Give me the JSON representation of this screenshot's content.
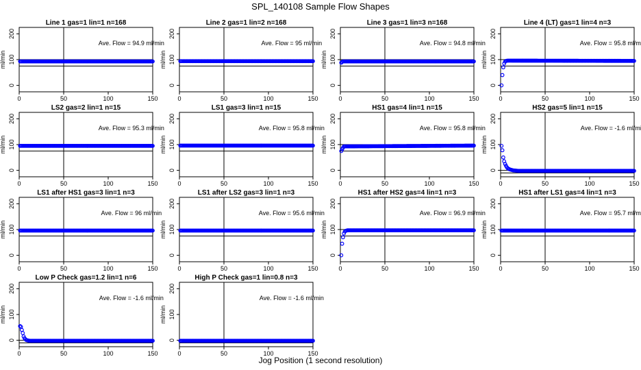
{
  "figure": {
    "title": "SPL_140108  Sample Flow Shapes",
    "xlabel": "Jog Position (1 second resolution)"
  },
  "colors": {
    "points": "#0000ff",
    "axis": "#000000",
    "background": "#ffffff"
  },
  "chart_data": [
    {
      "type": "scatter",
      "title": "Line 1 gas=1 lin=1 n=168",
      "annotation": "Ave. Flow = 94.9  ml/min",
      "ylabel": "ml/min",
      "xlim": [
        0,
        150
      ],
      "ylim": [
        -25,
        225
      ],
      "xticks": [
        0,
        50,
        100,
        150
      ],
      "yticks": [
        0,
        100,
        200
      ],
      "ref_lines": {
        "v": 50,
        "h": [
          75,
          100
        ]
      },
      "x": [
        1,
        150
      ],
      "y": [
        93,
        93
      ]
    },
    {
      "type": "scatter",
      "title": "Line 2 gas=1 lin=2 n=168",
      "annotation": "Ave. Flow = 95  ml/min",
      "ylabel": "ml/min",
      "xlim": [
        0,
        150
      ],
      "ylim": [
        -25,
        225
      ],
      "xticks": [
        0,
        50,
        100,
        150
      ],
      "yticks": [
        0,
        100,
        200
      ],
      "ref_lines": {
        "v": 50,
        "h": [
          75,
          100
        ]
      },
      "x": [
        1,
        150
      ],
      "y": [
        94,
        94
      ]
    },
    {
      "type": "scatter",
      "title": "Line 3 gas=1 lin=3 n=168",
      "annotation": "Ave. Flow = 94.8  ml/min",
      "ylabel": "ml/min",
      "xlim": [
        0,
        150
      ],
      "ylim": [
        -25,
        225
      ],
      "xticks": [
        0,
        50,
        100,
        150
      ],
      "yticks": [
        0,
        100,
        200
      ],
      "ref_lines": {
        "v": 50,
        "h": [
          75,
          100
        ]
      },
      "x": [
        1,
        2,
        3,
        150
      ],
      "y": [
        88,
        91,
        93,
        93
      ]
    },
    {
      "type": "scatter",
      "title": "Line 4 (LT) gas=1 lin=4 n=3",
      "annotation": "Ave. Flow = 95.8  ml/min",
      "ylabel": "ml/min",
      "xlim": [
        0,
        150
      ],
      "ylim": [
        -25,
        225
      ],
      "xticks": [
        0,
        50,
        100,
        150
      ],
      "yticks": [
        0,
        100,
        200
      ],
      "ref_lines": {
        "v": 50,
        "h": [
          75,
          100
        ]
      },
      "x": [
        1,
        2,
        3,
        4,
        5,
        6,
        8,
        10,
        150
      ],
      "y": [
        0,
        40,
        70,
        85,
        92,
        95,
        96,
        96,
        95
      ]
    },
    {
      "type": "scatter",
      "title": "LS2 gas=2 lin=1 n=15",
      "annotation": "Ave. Flow = 95.3  ml/min",
      "ylabel": "ml/min",
      "xlim": [
        0,
        150
      ],
      "ylim": [
        -25,
        225
      ],
      "xticks": [
        0,
        50,
        100,
        150
      ],
      "yticks": [
        0,
        100,
        200
      ],
      "ref_lines": {
        "v": 50,
        "h": [
          75,
          100
        ]
      },
      "x": [
        1,
        150
      ],
      "y": [
        95,
        95
      ]
    },
    {
      "type": "scatter",
      "title": "LS1 gas=3 lin=1 n=15",
      "annotation": "Ave. Flow = 95.8  ml/min",
      "ylabel": "ml/min",
      "xlim": [
        0,
        150
      ],
      "ylim": [
        -25,
        225
      ],
      "xticks": [
        0,
        50,
        100,
        150
      ],
      "yticks": [
        0,
        100,
        200
      ],
      "ref_lines": {
        "v": 50,
        "h": [
          75,
          100
        ]
      },
      "x": [
        1,
        150
      ],
      "y": [
        96,
        96
      ]
    },
    {
      "type": "scatter",
      "title": "HS1 gas=4 lin=1 n=15",
      "annotation": "Ave. Flow = 95.8  ml/min",
      "ylabel": "ml/min",
      "xlim": [
        0,
        150
      ],
      "ylim": [
        -25,
        225
      ],
      "xticks": [
        0,
        50,
        100,
        150
      ],
      "yticks": [
        0,
        100,
        200
      ],
      "ref_lines": {
        "v": 50,
        "h": [
          75,
          100
        ]
      },
      "x": [
        1,
        2,
        3,
        4,
        150
      ],
      "y": [
        75,
        82,
        88,
        93,
        96
      ]
    },
    {
      "type": "scatter",
      "title": "HS2 gas=5 lin=1 n=15",
      "annotation": "Ave. Flow = -1.6  ml/min",
      "ylabel": "ml/min",
      "xlim": [
        0,
        150
      ],
      "ylim": [
        -25,
        225
      ],
      "xticks": [
        0,
        50,
        100,
        150
      ],
      "yticks": [
        0,
        100,
        200
      ],
      "ref_lines": {
        "v": 50,
        "h": [
          -10,
          0
        ]
      },
      "x": [
        1,
        2,
        3,
        4,
        5,
        6,
        7,
        8,
        10,
        12,
        14,
        17,
        20,
        150
      ],
      "y": [
        95,
        78,
        50,
        35,
        25,
        18,
        12,
        8,
        4,
        2,
        0,
        -1,
        -2,
        -2
      ]
    },
    {
      "type": "scatter",
      "title": "LS1 after HS1 gas=3 lin=1 n=3",
      "annotation": "Ave. Flow = 96  ml/min",
      "ylabel": "ml/min",
      "xlim": [
        0,
        150
      ],
      "ylim": [
        -25,
        225
      ],
      "xticks": [
        0,
        50,
        100,
        150
      ],
      "yticks": [
        0,
        100,
        200
      ],
      "ref_lines": {
        "v": 50,
        "h": [
          75,
          100
        ]
      },
      "x": [
        1,
        150
      ],
      "y": [
        96,
        96
      ]
    },
    {
      "type": "scatter",
      "title": "LS1 after LS2 gas=3 lin=1 n=3",
      "annotation": "Ave. Flow = 95.6  ml/min",
      "ylabel": "ml/min",
      "xlim": [
        0,
        150
      ],
      "ylim": [
        -25,
        225
      ],
      "xticks": [
        0,
        50,
        100,
        150
      ],
      "yticks": [
        0,
        100,
        200
      ],
      "ref_lines": {
        "v": 50,
        "h": [
          75,
          100
        ]
      },
      "x": [
        1,
        150
      ],
      "y": [
        96,
        96
      ]
    },
    {
      "type": "scatter",
      "title": "HS1 after HS2 gas=4 lin=1 n=3",
      "annotation": "Ave. Flow = 96.9  ml/min",
      "ylabel": "ml/min",
      "xlim": [
        0,
        150
      ],
      "ylim": [
        -25,
        225
      ],
      "xticks": [
        0,
        50,
        100,
        150
      ],
      "yticks": [
        0,
        100,
        200
      ],
      "ref_lines": {
        "v": 50,
        "h": [
          75,
          100
        ]
      },
      "x": [
        1,
        2,
        3,
        4,
        5,
        6,
        8,
        150
      ],
      "y": [
        0,
        45,
        70,
        85,
        92,
        95,
        97,
        97
      ]
    },
    {
      "type": "scatter",
      "title": "HS1 after LS1 gas=4 lin=1 n=3",
      "annotation": "Ave. Flow = 95.7  ml/min",
      "ylabel": "ml/min",
      "xlim": [
        0,
        150
      ],
      "ylim": [
        -25,
        225
      ],
      "xticks": [
        0,
        50,
        100,
        150
      ],
      "yticks": [
        0,
        100,
        200
      ],
      "ref_lines": {
        "v": 50,
        "h": [
          75,
          100
        ]
      },
      "x": [
        1,
        150
      ],
      "y": [
        96,
        96
      ]
    },
    {
      "type": "scatter",
      "title": "Low P Check gas=1.2 lin=1 n=6",
      "annotation": "Ave. Flow = -1.6  ml/min",
      "ylabel": "ml/min",
      "xlim": [
        0,
        150
      ],
      "ylim": [
        -25,
        225
      ],
      "xticks": [
        0,
        50,
        100,
        150
      ],
      "yticks": [
        0,
        100,
        200
      ],
      "ref_lines": {
        "v": 50,
        "h": [
          -10,
          0
        ]
      },
      "x": [
        1,
        2,
        3,
        4,
        5,
        6,
        7,
        8,
        10,
        12,
        150
      ],
      "y": [
        55,
        52,
        40,
        28,
        15,
        8,
        4,
        1,
        -1,
        -2,
        -2
      ]
    },
    {
      "type": "scatter",
      "title": "High P Check gas=1 lin=0.8 n=3",
      "annotation": "Ave. Flow = -1.6  ml/min",
      "ylabel": "ml/min",
      "xlim": [
        0,
        150
      ],
      "ylim": [
        -25,
        225
      ],
      "xticks": [
        0,
        50,
        100,
        150
      ],
      "yticks": [
        0,
        100,
        200
      ],
      "ref_lines": {
        "v": 50,
        "h": [
          -10,
          0
        ]
      },
      "x": [
        1,
        150
      ],
      "y": [
        -2,
        -2
      ]
    }
  ]
}
